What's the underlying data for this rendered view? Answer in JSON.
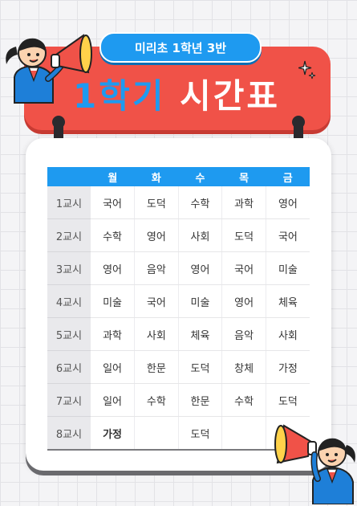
{
  "header": {
    "class_label": "미리초 1학년 3반",
    "title_part1": "1학기",
    "title_part2": "시간표"
  },
  "timetable": {
    "days": [
      "월",
      "화",
      "수",
      "목",
      "금"
    ],
    "rows": [
      {
        "period": "1교시",
        "subjects": [
          "국어",
          "도덕",
          "수학",
          "과학",
          "영어"
        ]
      },
      {
        "period": "2교시",
        "subjects": [
          "수학",
          "영어",
          "사회",
          "도덕",
          "국어"
        ]
      },
      {
        "period": "3교시",
        "subjects": [
          "영어",
          "음악",
          "영어",
          "국어",
          "미술"
        ]
      },
      {
        "period": "4교시",
        "subjects": [
          "미술",
          "국어",
          "미술",
          "영어",
          "체육"
        ]
      },
      {
        "period": "5교시",
        "subjects": [
          "과학",
          "사회",
          "체육",
          "음악",
          "사회"
        ]
      },
      {
        "period": "6교시",
        "subjects": [
          "일어",
          "한문",
          "도덕",
          "창체",
          "가정"
        ]
      },
      {
        "period": "7교시",
        "subjects": [
          "일어",
          "수학",
          "한문",
          "수학",
          "도덕"
        ]
      },
      {
        "period": "8교시",
        "subjects": [
          "가정",
          "",
          "도덕",
          "",
          ""
        ]
      }
    ]
  },
  "colors": {
    "banner": "#f05248",
    "accent_blue": "#1e9af0",
    "card": "#ffffff"
  },
  "icons": [
    "megaphone-icon",
    "sparkle-icon",
    "binder-ring-icon"
  ]
}
